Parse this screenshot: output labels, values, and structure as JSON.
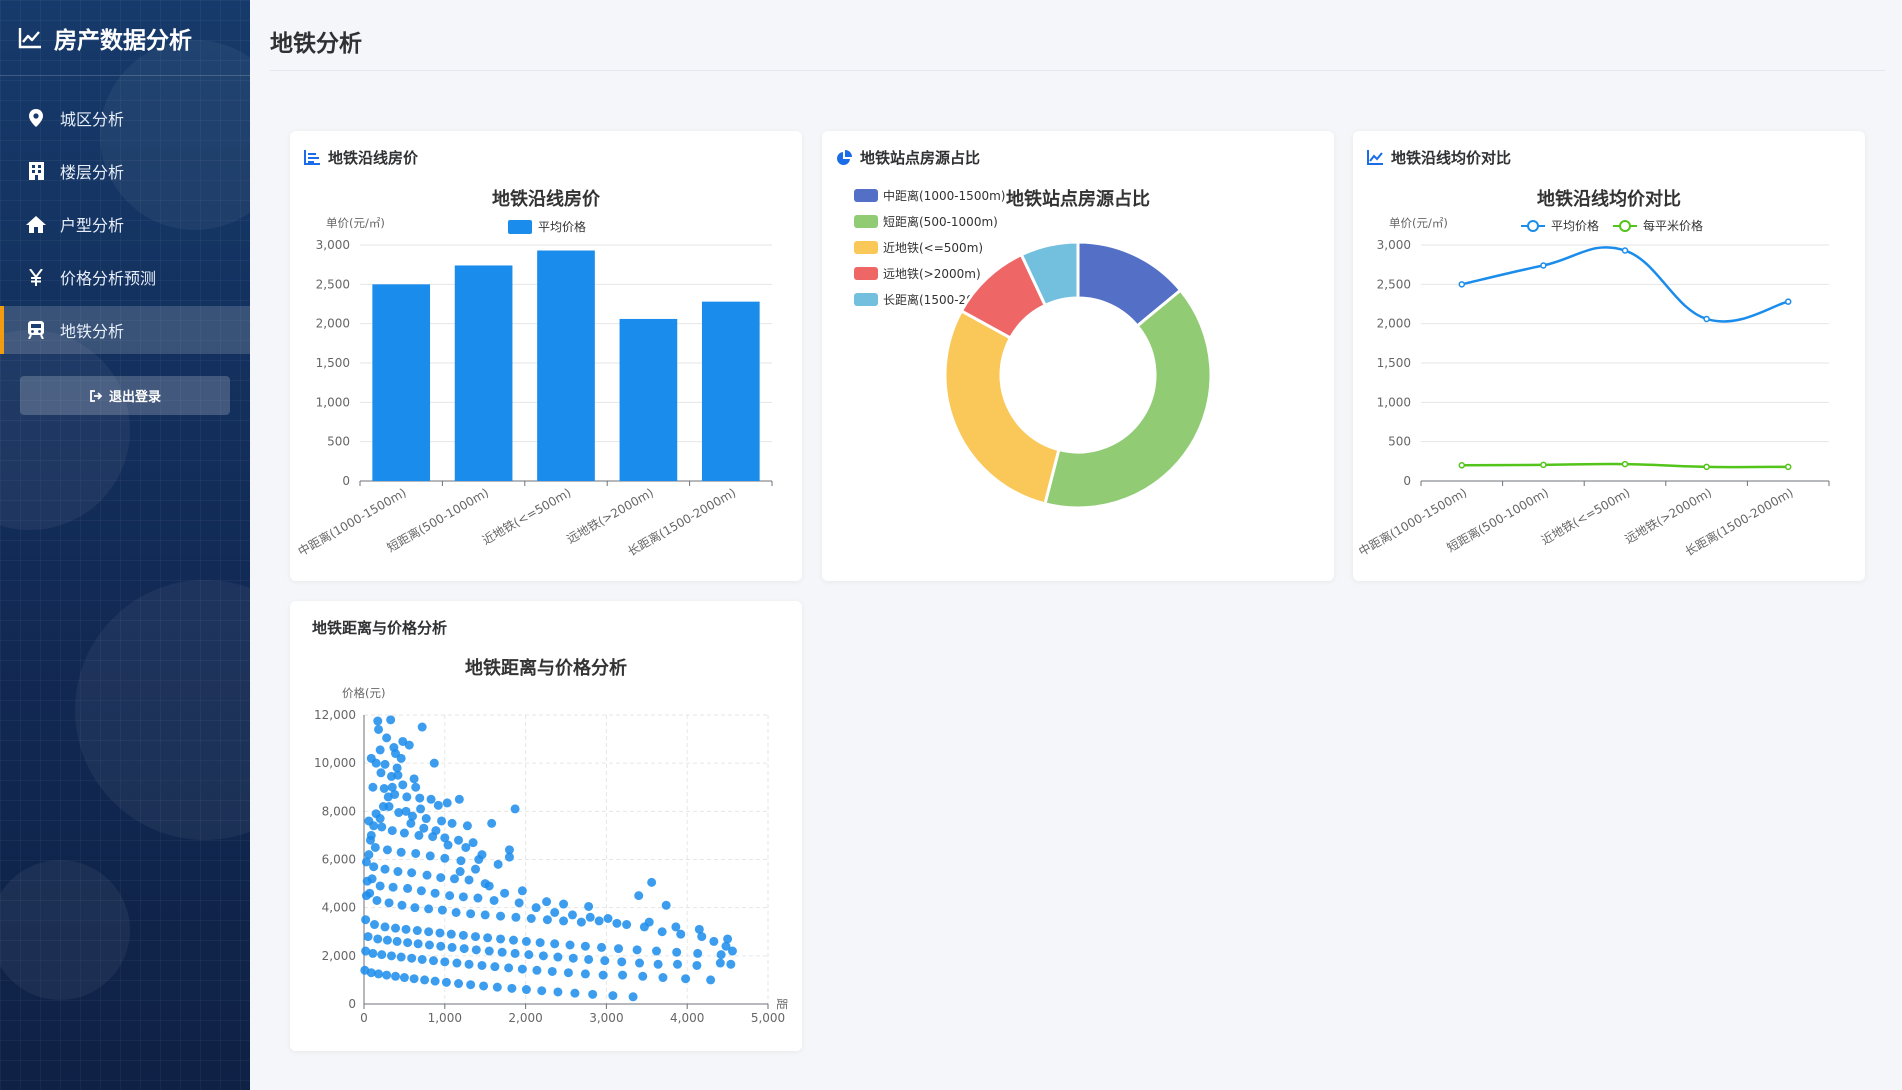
{
  "app": {
    "title": "房产数据分析",
    "page_title": "地铁分析"
  },
  "sidebar": {
    "items": [
      {
        "label": "城区分析",
        "icon": "location-pin-icon",
        "active": false
      },
      {
        "label": "楼层分析",
        "icon": "building-icon",
        "active": false
      },
      {
        "label": "户型分析",
        "icon": "home-icon",
        "active": false
      },
      {
        "label": "价格分析预测",
        "icon": "yen-icon",
        "active": false
      },
      {
        "label": "地铁分析",
        "icon": "subway-icon",
        "active": true
      }
    ],
    "logout_label": "退出登录",
    "accent_color": "#f39c12"
  },
  "cards": {
    "bar": {
      "header": "地铁沿线房价"
    },
    "pie": {
      "header": "地铁站点房源占比"
    },
    "line": {
      "header": "地铁沿线均价对比"
    },
    "scatter": {
      "header": "地铁距离与价格分析"
    }
  },
  "chart_data": [
    {
      "id": "bar",
      "type": "bar",
      "title": "地铁沿线房价",
      "ylabel": "单价(元/㎡)",
      "categories": [
        "中距离(1000-1500m)",
        "短距离(500-1000m)",
        "近地铁(<=500m)",
        "远地铁(>2000m)",
        "长距离(1500-2000m)"
      ],
      "series": [
        {
          "name": "平均价格",
          "values": [
            2500,
            2740,
            2930,
            2060,
            2280
          ],
          "color": "#1a8cec"
        }
      ],
      "ylim": [
        0,
        3000
      ],
      "yticks": [
        0,
        500,
        1000,
        1500,
        2000,
        2500,
        3000
      ],
      "legend": "top-center"
    },
    {
      "id": "pie",
      "type": "pie",
      "title": "地铁站点房源占比",
      "donut": true,
      "slices": [
        {
          "label": "中距离(1000-1500m)",
          "value": 14,
          "color": "#5470c6"
        },
        {
          "label": "短距离(500-1000m)",
          "value": 40,
          "color": "#91cc75"
        },
        {
          "label": "近地铁(<=500m)",
          "value": 29,
          "color": "#fac858"
        },
        {
          "label": "远地铁(>2000m)",
          "value": 10,
          "color": "#ee6666"
        },
        {
          "label": "长距离(1500-2000m)",
          "value": 7,
          "color": "#73c0de"
        }
      ],
      "legend": "top-left"
    },
    {
      "id": "line",
      "type": "line",
      "title": "地铁沿线均价对比",
      "ylabel": "单价(元/㎡)",
      "categories": [
        "中距离(1000-1500m)",
        "短距离(500-1000m)",
        "近地铁(<=500m)",
        "远地铁(>2000m)",
        "长距离(1500-2000m)"
      ],
      "series": [
        {
          "name": "平均价格",
          "values": [
            2500,
            2740,
            2930,
            2060,
            2280
          ],
          "color": "#1a8cec"
        },
        {
          "name": "每平米价格",
          "values": [
            200,
            205,
            215,
            180,
            180
          ],
          "color": "#52c41a"
        }
      ],
      "ylim": [
        0,
        3000
      ],
      "yticks": [
        0,
        500,
        1000,
        1500,
        2000,
        2500,
        3000
      ],
      "smooth": true,
      "legend": "top-center"
    },
    {
      "id": "scatter",
      "type": "scatter",
      "title": "地铁距离与价格分析",
      "ylabel": "价格(元)",
      "xlabel": "距",
      "xlim": [
        0,
        5000
      ],
      "ylim": [
        0,
        12000
      ],
      "xticks": [
        0,
        1000,
        2000,
        3000,
        4000,
        5000
      ],
      "yticks": [
        0,
        2000,
        4000,
        6000,
        8000,
        10000,
        12000
      ],
      "color": "#1a8cec",
      "points": [
        [
          170,
          11750
        ],
        [
          330,
          11800
        ],
        [
          180,
          11400
        ],
        [
          280,
          11050
        ],
        [
          720,
          11500
        ],
        [
          480,
          10900
        ],
        [
          200,
          10550
        ],
        [
          370,
          10650
        ],
        [
          560,
          10750
        ],
        [
          90,
          10200
        ],
        [
          150,
          10000
        ],
        [
          260,
          9950
        ],
        [
          410,
          9800
        ],
        [
          870,
          10000
        ],
        [
          210,
          9600
        ],
        [
          340,
          9450
        ],
        [
          620,
          9350
        ],
        [
          480,
          9100
        ],
        [
          110,
          9000
        ],
        [
          250,
          8950
        ],
        [
          380,
          8700
        ],
        [
          530,
          8600
        ],
        [
          690,
          8550
        ],
        [
          830,
          8500
        ],
        [
          1180,
          8500
        ],
        [
          1030,
          8350
        ],
        [
          920,
          8250
        ],
        [
          1870,
          8100
        ],
        [
          310,
          8200
        ],
        [
          150,
          7900
        ],
        [
          430,
          7950
        ],
        [
          600,
          7800
        ],
        [
          770,
          7700
        ],
        [
          960,
          7600
        ],
        [
          1090,
          7500
        ],
        [
          1280,
          7400
        ],
        [
          1580,
          7500
        ],
        [
          60,
          7600
        ],
        [
          220,
          7350
        ],
        [
          350,
          7200
        ],
        [
          500,
          7100
        ],
        [
          680,
          7000
        ],
        [
          850,
          6950
        ],
        [
          1000,
          6900
        ],
        [
          1170,
          6800
        ],
        [
          1350,
          6700
        ],
        [
          80,
          6800
        ],
        [
          140,
          6500
        ],
        [
          290,
          6400
        ],
        [
          460,
          6300
        ],
        [
          640,
          6250
        ],
        [
          820,
          6150
        ],
        [
          1000,
          6050
        ],
        [
          1200,
          5950
        ],
        [
          1420,
          6000
        ],
        [
          1800,
          6400
        ],
        [
          1800,
          6100
        ],
        [
          30,
          5900
        ],
        [
          120,
          5700
        ],
        [
          260,
          5600
        ],
        [
          420,
          5500
        ],
        [
          590,
          5450
        ],
        [
          780,
          5350
        ],
        [
          950,
          5250
        ],
        [
          1120,
          5200
        ],
        [
          1300,
          5150
        ],
        [
          1500,
          5000
        ],
        [
          40,
          5100
        ],
        [
          200,
          4900
        ],
        [
          360,
          4850
        ],
        [
          540,
          4800
        ],
        [
          710,
          4700
        ],
        [
          880,
          4600
        ],
        [
          1060,
          4500
        ],
        [
          1230,
          4450
        ],
        [
          1410,
          4400
        ],
        [
          1610,
          4300
        ],
        [
          1960,
          4700
        ],
        [
          2260,
          4250
        ],
        [
          2470,
          4150
        ],
        [
          2780,
          4050
        ],
        [
          3400,
          4500
        ],
        [
          3560,
          5050
        ],
        [
          3740,
          4100
        ],
        [
          30,
          4500
        ],
        [
          160,
          4300
        ],
        [
          310,
          4200
        ],
        [
          470,
          4100
        ],
        [
          630,
          4000
        ],
        [
          800,
          3950
        ],
        [
          970,
          3900
        ],
        [
          1140,
          3800
        ],
        [
          1320,
          3750
        ],
        [
          1500,
          3700
        ],
        [
          1690,
          3650
        ],
        [
          1880,
          3600
        ],
        [
          2070,
          3550
        ],
        [
          2270,
          3500
        ],
        [
          2470,
          3450
        ],
        [
          2690,
          3400
        ],
        [
          2910,
          3450
        ],
        [
          3130,
          3350
        ],
        [
          3530,
          3400
        ],
        [
          3860,
          3200
        ],
        [
          4150,
          3100
        ],
        [
          4500,
          2700
        ],
        [
          20,
          3500
        ],
        [
          130,
          3300
        ],
        [
          260,
          3200
        ],
        [
          390,
          3150
        ],
        [
          520,
          3100
        ],
        [
          660,
          3050
        ],
        [
          800,
          3000
        ],
        [
          940,
          2950
        ],
        [
          1080,
          2900
        ],
        [
          1230,
          2850
        ],
        [
          1380,
          2800
        ],
        [
          1530,
          2750
        ],
        [
          1690,
          2700
        ],
        [
          1850,
          2650
        ],
        [
          2010,
          2600
        ],
        [
          2180,
          2550
        ],
        [
          2360,
          2500
        ],
        [
          2550,
          2450
        ],
        [
          2740,
          2400
        ],
        [
          2940,
          2350
        ],
        [
          3150,
          2300
        ],
        [
          3380,
          2250
        ],
        [
          3620,
          2200
        ],
        [
          3870,
          2150
        ],
        [
          4130,
          2100
        ],
        [
          4420,
          2050
        ],
        [
          50,
          2800
        ],
        [
          170,
          2700
        ],
        [
          290,
          2650
        ],
        [
          410,
          2600
        ],
        [
          540,
          2550
        ],
        [
          670,
          2500
        ],
        [
          810,
          2450
        ],
        [
          950,
          2400
        ],
        [
          1090,
          2350
        ],
        [
          1240,
          2300
        ],
        [
          1390,
          2250
        ],
        [
          1550,
          2200
        ],
        [
          1710,
          2150
        ],
        [
          1870,
          2100
        ],
        [
          2040,
          2050
        ],
        [
          2220,
          2000
        ],
        [
          2400,
          1950
        ],
        [
          2590,
          1900
        ],
        [
          2780,
          1850
        ],
        [
          2980,
          1800
        ],
        [
          3190,
          1750
        ],
        [
          3410,
          1700
        ],
        [
          3640,
          1650
        ],
        [
          3880,
          1650
        ],
        [
          4120,
          1600
        ],
        [
          4410,
          1700
        ],
        [
          4540,
          1650
        ],
        [
          20,
          2200
        ],
        [
          110,
          2100
        ],
        [
          220,
          2050
        ],
        [
          340,
          2000
        ],
        [
          460,
          1950
        ],
        [
          590,
          1900
        ],
        [
          720,
          1850
        ],
        [
          860,
          1800
        ],
        [
          1000,
          1750
        ],
        [
          1150,
          1700
        ],
        [
          1300,
          1650
        ],
        [
          1460,
          1600
        ],
        [
          1620,
          1550
        ],
        [
          1790,
          1500
        ],
        [
          1960,
          1450
        ],
        [
          2140,
          1400
        ],
        [
          2330,
          1350
        ],
        [
          2530,
          1300
        ],
        [
          2740,
          1250
        ],
        [
          2960,
          1200
        ],
        [
          3200,
          1200
        ],
        [
          3450,
          1150
        ],
        [
          3700,
          1100
        ],
        [
          3980,
          1050
        ],
        [
          4290,
          1000
        ],
        [
          10,
          1400
        ],
        [
          90,
          1300
        ],
        [
          180,
          1250
        ],
        [
          280,
          1200
        ],
        [
          390,
          1150
        ],
        [
          500,
          1100
        ],
        [
          620,
          1050
        ],
        [
          750,
          1000
        ],
        [
          880,
          950
        ],
        [
          1020,
          900
        ],
        [
          1170,
          850
        ],
        [
          1320,
          800
        ],
        [
          1480,
          750
        ],
        [
          1650,
          700
        ],
        [
          1830,
          650
        ],
        [
          2010,
          600
        ],
        [
          2200,
          550
        ],
        [
          2400,
          500
        ],
        [
          2610,
          450
        ],
        [
          2830,
          400
        ],
        [
          3080,
          350
        ],
        [
          3330,
          300
        ],
        [
          70,
          4600
        ],
        [
          100,
          5200
        ],
        [
          60,
          6200
        ],
        [
          90,
          7000
        ],
        [
          120,
          7400
        ],
        [
          200,
          7700
        ],
        [
          240,
          8200
        ],
        [
          300,
          8600
        ],
        [
          350,
          9000
        ],
        [
          420,
          9500
        ],
        [
          460,
          10200
        ],
        [
          390,
          10400
        ],
        [
          640,
          9000
        ],
        [
          700,
          8100
        ],
        [
          520,
          8000
        ],
        [
          580,
          7500
        ],
        [
          740,
          7300
        ],
        [
          890,
          7200
        ],
        [
          1040,
          6600
        ],
        [
          1260,
          6500
        ],
        [
          1460,
          6200
        ],
        [
          1660,
          5800
        ],
        [
          1380,
          5600
        ],
        [
          1190,
          5500
        ],
        [
          1550,
          4900
        ],
        [
          1740,
          4600
        ],
        [
          1920,
          4200
        ],
        [
          2130,
          4000
        ],
        [
          2360,
          3800
        ],
        [
          2580,
          3700
        ],
        [
          2800,
          3600
        ],
        [
          3020,
          3550
        ],
        [
          3250,
          3300
        ],
        [
          3470,
          3200
        ],
        [
          3690,
          3000
        ],
        [
          3920,
          2900
        ],
        [
          4180,
          2800
        ],
        [
          4330,
          2600
        ],
        [
          4480,
          2400
        ],
        [
          4560,
          2200
        ]
      ]
    }
  ]
}
